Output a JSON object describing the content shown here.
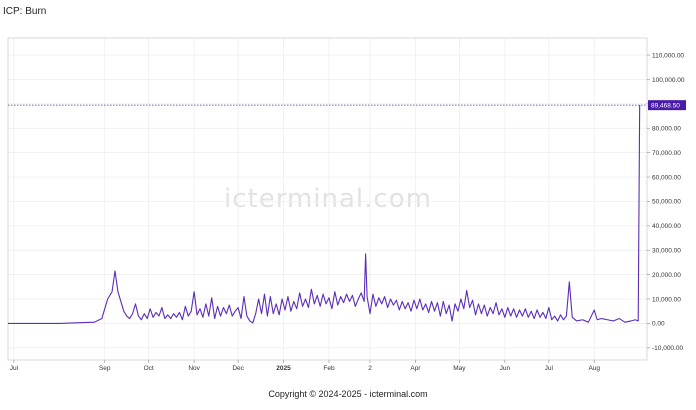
{
  "title": "ICP: Burn",
  "watermark": "icterminal.com",
  "footer": "Copyright © 2024-2025 - icterminal.com",
  "colors": {
    "line": "#5b2db8",
    "grid": "#ececec",
    "axis": "#999999",
    "label_bg": "#4a1aa8"
  },
  "chart_data": {
    "type": "line",
    "title": "ICP: Burn",
    "xlabel": "",
    "ylabel": "",
    "ylim": [
      -15000,
      117000
    ],
    "y_ticks": [
      "110,000.00",
      "100,000.00",
      "90,000.00",
      "80,000.00",
      "70,000.00",
      "60,000.00",
      "50,000.00",
      "40,000.00",
      "30,000.00",
      "20,000.00",
      "10,000.00",
      "0.00",
      "-10,000.00"
    ],
    "x_ticks": [
      {
        "label": "Jul",
        "date": "2024-07-01",
        "bold": false
      },
      {
        "label": "Sep",
        "date": "2024-09-01",
        "bold": false
      },
      {
        "label": "Oct",
        "date": "2024-10-01",
        "bold": false
      },
      {
        "label": "Nov",
        "date": "2024-11-01",
        "bold": false
      },
      {
        "label": "Dec",
        "date": "2024-12-01",
        "bold": false
      },
      {
        "label": "2025",
        "date": "2025-01-01",
        "bold": true
      },
      {
        "label": "Feb",
        "date": "2025-02-01",
        "bold": false
      },
      {
        "label": "2",
        "date": "2025-03-01",
        "bold": false
      },
      {
        "label": "Apr",
        "date": "2025-04-01",
        "bold": false
      },
      {
        "label": "May",
        "date": "2025-05-01",
        "bold": false
      },
      {
        "label": "Jun",
        "date": "2025-06-01",
        "bold": false
      },
      {
        "label": "Jul",
        "date": "2025-07-01",
        "bold": false
      },
      {
        "label": "Aug",
        "date": "2025-08-01",
        "bold": false
      }
    ],
    "grid": true,
    "last_value_label": "89,468.50",
    "last_value": 89468.5,
    "series": [
      {
        "points": [
          [
            "2024-06-27",
            0
          ],
          [
            "2024-07-15",
            0
          ],
          [
            "2024-08-01",
            0
          ],
          [
            "2024-08-15",
            300
          ],
          [
            "2024-08-25",
            500
          ],
          [
            "2024-08-30",
            2000
          ],
          [
            "2024-09-03",
            10000
          ],
          [
            "2024-09-06",
            13000
          ],
          [
            "2024-09-08",
            21500
          ],
          [
            "2024-09-10",
            13000
          ],
          [
            "2024-09-12",
            9000
          ],
          [
            "2024-09-14",
            5000
          ],
          [
            "2024-09-16",
            3000
          ],
          [
            "2024-09-18",
            2000
          ],
          [
            "2024-09-20",
            4000
          ],
          [
            "2024-09-22",
            8000
          ],
          [
            "2024-09-24",
            3000
          ],
          [
            "2024-09-26",
            1500
          ],
          [
            "2024-09-28",
            4000
          ],
          [
            "2024-09-30",
            2000
          ],
          [
            "2024-10-02",
            6000
          ],
          [
            "2024-10-04",
            2500
          ],
          [
            "2024-10-06",
            4500
          ],
          [
            "2024-10-08",
            3000
          ],
          [
            "2024-10-10",
            6500
          ],
          [
            "2024-10-12",
            2000
          ],
          [
            "2024-10-14",
            3500
          ],
          [
            "2024-10-16",
            2000
          ],
          [
            "2024-10-18",
            4000
          ],
          [
            "2024-10-20",
            2500
          ],
          [
            "2024-10-22",
            4500
          ],
          [
            "2024-10-24",
            1500
          ],
          [
            "2024-10-26",
            7000
          ],
          [
            "2024-10-28",
            3000
          ],
          [
            "2024-10-30",
            5000
          ],
          [
            "2024-11-01",
            13000
          ],
          [
            "2024-11-03",
            3500
          ],
          [
            "2024-11-05",
            6000
          ],
          [
            "2024-11-07",
            2500
          ],
          [
            "2024-11-09",
            8000
          ],
          [
            "2024-11-11",
            3000
          ],
          [
            "2024-11-13",
            10500
          ],
          [
            "2024-11-15",
            2000
          ],
          [
            "2024-11-17",
            7000
          ],
          [
            "2024-11-19",
            3000
          ],
          [
            "2024-11-21",
            6500
          ],
          [
            "2024-11-23",
            4000
          ],
          [
            "2024-11-25",
            7500
          ],
          [
            "2024-11-27",
            3000
          ],
          [
            "2024-11-29",
            5000
          ],
          [
            "2024-12-01",
            6500
          ],
          [
            "2024-12-03",
            2000
          ],
          [
            "2024-12-05",
            11000
          ],
          [
            "2024-12-07",
            3000
          ],
          [
            "2024-12-09",
            1000
          ],
          [
            "2024-12-11",
            200
          ],
          [
            "2024-12-13",
            4000
          ],
          [
            "2024-12-15",
            10000
          ],
          [
            "2024-12-17",
            4000
          ],
          [
            "2024-12-19",
            12000
          ],
          [
            "2024-12-21",
            3000
          ],
          [
            "2024-12-23",
            11000
          ],
          [
            "2024-12-25",
            4000
          ],
          [
            "2024-12-27",
            8000
          ],
          [
            "2024-12-29",
            3500
          ],
          [
            "2024-12-31",
            10000
          ],
          [
            "2025-01-02",
            5500
          ],
          [
            "2025-01-04",
            11000
          ],
          [
            "2025-01-06",
            5000
          ],
          [
            "2025-01-08",
            9000
          ],
          [
            "2025-01-10",
            6000
          ],
          [
            "2025-01-12",
            12500
          ],
          [
            "2025-01-14",
            7000
          ],
          [
            "2025-01-16",
            10000
          ],
          [
            "2025-01-18",
            6500
          ],
          [
            "2025-01-20",
            14000
          ],
          [
            "2025-01-22",
            8000
          ],
          [
            "2025-01-24",
            11500
          ],
          [
            "2025-01-26",
            7000
          ],
          [
            "2025-01-28",
            12000
          ],
          [
            "2025-01-30",
            8000
          ],
          [
            "2025-02-01",
            10500
          ],
          [
            "2025-02-03",
            6000
          ],
          [
            "2025-02-05",
            13000
          ],
          [
            "2025-02-07",
            7500
          ],
          [
            "2025-02-09",
            11000
          ],
          [
            "2025-02-11",
            8500
          ],
          [
            "2025-02-13",
            12000
          ],
          [
            "2025-02-15",
            9000
          ],
          [
            "2025-02-17",
            11500
          ],
          [
            "2025-02-19",
            7000
          ],
          [
            "2025-02-21",
            10000
          ],
          [
            "2025-02-23",
            12500
          ],
          [
            "2025-02-25",
            9000
          ],
          [
            "2025-02-26",
            28500
          ],
          [
            "2025-02-27",
            11000
          ],
          [
            "2025-03-01",
            4000
          ],
          [
            "2025-03-03",
            12000
          ],
          [
            "2025-03-05",
            7000
          ],
          [
            "2025-03-07",
            10500
          ],
          [
            "2025-03-09",
            8000
          ],
          [
            "2025-03-11",
            11000
          ],
          [
            "2025-03-13",
            6500
          ],
          [
            "2025-03-15",
            10000
          ],
          [
            "2025-03-17",
            7500
          ],
          [
            "2025-03-19",
            9500
          ],
          [
            "2025-03-21",
            5500
          ],
          [
            "2025-03-23",
            9000
          ],
          [
            "2025-03-25",
            6000
          ],
          [
            "2025-03-27",
            8500
          ],
          [
            "2025-03-29",
            5000
          ],
          [
            "2025-03-31",
            9500
          ],
          [
            "2025-04-02",
            6000
          ],
          [
            "2025-04-04",
            10000
          ],
          [
            "2025-04-06",
            5500
          ],
          [
            "2025-04-08",
            8000
          ],
          [
            "2025-04-10",
            4500
          ],
          [
            "2025-04-12",
            9000
          ],
          [
            "2025-04-14",
            5000
          ],
          [
            "2025-04-16",
            8500
          ],
          [
            "2025-04-18",
            3000
          ],
          [
            "2025-04-20",
            9000
          ],
          [
            "2025-04-22",
            4000
          ],
          [
            "2025-04-24",
            7500
          ],
          [
            "2025-04-26",
            1000
          ],
          [
            "2025-04-28",
            8000
          ],
          [
            "2025-04-30",
            5000
          ],
          [
            "2025-05-02",
            10000
          ],
          [
            "2025-05-04",
            6000
          ],
          [
            "2025-05-06",
            13500
          ],
          [
            "2025-05-08",
            6500
          ],
          [
            "2025-05-10",
            9500
          ],
          [
            "2025-05-12",
            3500
          ],
          [
            "2025-05-14",
            8000
          ],
          [
            "2025-05-16",
            4000
          ],
          [
            "2025-05-18",
            7500
          ],
          [
            "2025-05-20",
            3000
          ],
          [
            "2025-05-22",
            6500
          ],
          [
            "2025-05-24",
            4000
          ],
          [
            "2025-05-26",
            8500
          ],
          [
            "2025-05-28",
            3500
          ],
          [
            "2025-05-30",
            6000
          ],
          [
            "2025-06-01",
            2500
          ],
          [
            "2025-06-03",
            6500
          ],
          [
            "2025-06-05",
            3000
          ],
          [
            "2025-06-07",
            6000
          ],
          [
            "2025-06-09",
            2500
          ],
          [
            "2025-06-11",
            5500
          ],
          [
            "2025-06-13",
            3000
          ],
          [
            "2025-06-15",
            6000
          ],
          [
            "2025-06-17",
            2500
          ],
          [
            "2025-06-19",
            5000
          ],
          [
            "2025-06-21",
            2000
          ],
          [
            "2025-06-23",
            5500
          ],
          [
            "2025-06-25",
            2500
          ],
          [
            "2025-06-27",
            4500
          ],
          [
            "2025-06-29",
            2000
          ],
          [
            "2025-07-01",
            6500
          ],
          [
            "2025-07-03",
            1500
          ],
          [
            "2025-07-05",
            3000
          ],
          [
            "2025-07-07",
            1000
          ],
          [
            "2025-07-09",
            3500
          ],
          [
            "2025-07-11",
            1500
          ],
          [
            "2025-07-13",
            3000
          ],
          [
            "2025-07-15",
            17000
          ],
          [
            "2025-07-17",
            2500
          ],
          [
            "2025-07-20",
            1000
          ],
          [
            "2025-07-24",
            1500
          ],
          [
            "2025-07-28",
            500
          ],
          [
            "2025-08-01",
            5500
          ],
          [
            "2025-08-03",
            1500
          ],
          [
            "2025-08-06",
            2000
          ],
          [
            "2025-08-10",
            1500
          ],
          [
            "2025-08-14",
            1000
          ],
          [
            "2025-08-18",
            2000
          ],
          [
            "2025-08-22",
            500
          ],
          [
            "2025-08-26",
            1000
          ],
          [
            "2025-08-29",
            1500
          ],
          [
            "2025-08-31",
            1000
          ],
          [
            "2025-09-01",
            89468.5
          ]
        ]
      }
    ]
  }
}
